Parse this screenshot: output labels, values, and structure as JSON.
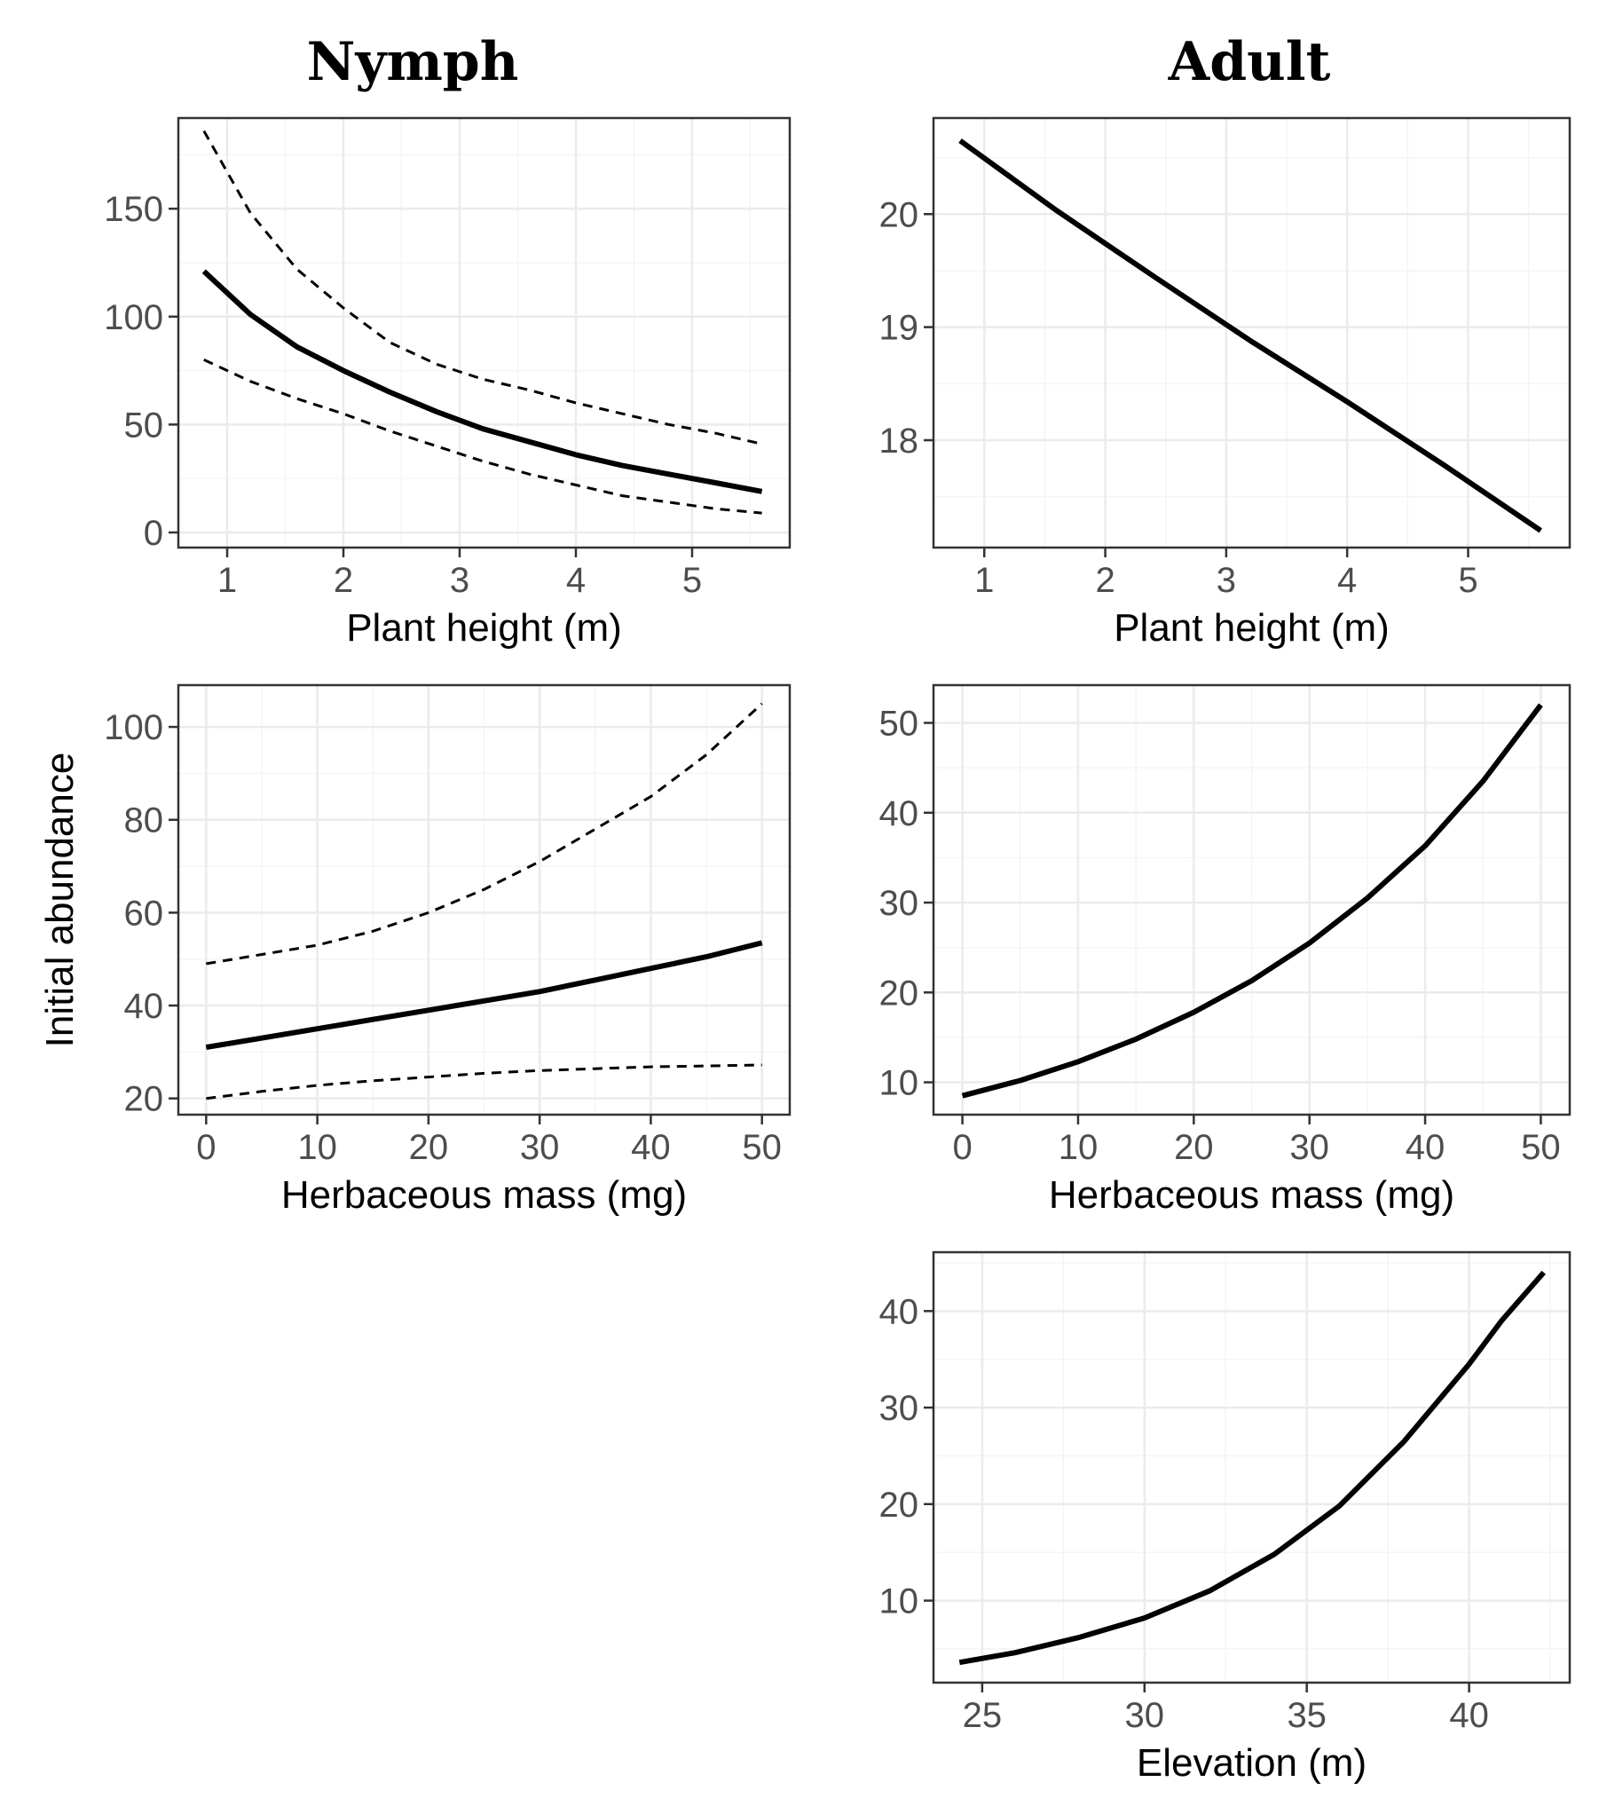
{
  "titles": {
    "nymph": "Nymph",
    "adult": "Adult"
  },
  "chart_data": [
    {
      "id": "nymph-height",
      "type": "line",
      "column": "nymph",
      "xlabel": "Plant height (m)",
      "ylabel": "",
      "xlim": [
        0.58,
        5.84
      ],
      "ylim": [
        -7,
        192
      ],
      "xticks": [
        1,
        2,
        3,
        4,
        5
      ],
      "yticks": [
        0,
        50,
        100,
        150
      ],
      "series": [
        {
          "name": "Estimate",
          "style": "solid",
          "x": [
            0.8,
            1.2,
            1.6,
            2.0,
            2.4,
            2.8,
            3.2,
            3.6,
            4.0,
            4.4,
            4.8,
            5.2,
            5.6
          ],
          "y": [
            121,
            101,
            86,
            75,
            65,
            56,
            48,
            42,
            36,
            31,
            27,
            23,
            19
          ]
        },
        {
          "name": "Upper 95% CI",
          "style": "dashed",
          "x": [
            0.8,
            1.2,
            1.6,
            2.0,
            2.4,
            2.8,
            3.2,
            3.6,
            4.0,
            4.4,
            4.8,
            5.2,
            5.6
          ],
          "y": [
            186,
            148,
            122,
            104,
            88,
            78,
            71,
            66,
            60,
            55,
            50,
            46,
            41
          ]
        },
        {
          "name": "Lower 95% CI",
          "style": "dashed",
          "x": [
            0.8,
            1.2,
            1.6,
            2.0,
            2.4,
            2.8,
            3.2,
            3.6,
            4.0,
            4.4,
            4.8,
            5.2,
            5.6
          ],
          "y": [
            80,
            70,
            62,
            55,
            47,
            40,
            33,
            27,
            22,
            17,
            14,
            11,
            9
          ]
        }
      ]
    },
    {
      "id": "adult-height",
      "type": "line",
      "column": "adult",
      "xlabel": "Plant height (m)",
      "ylabel": "",
      "xlim": [
        0.58,
        5.84
      ],
      "ylim": [
        17.05,
        20.85
      ],
      "xticks": [
        1,
        2,
        3,
        4,
        5
      ],
      "yticks": [
        18,
        19,
        20
      ],
      "series": [
        {
          "name": "Estimate",
          "style": "solid",
          "x": [
            0.8,
            1.6,
            2.4,
            3.2,
            4.0,
            4.8,
            5.6
          ],
          "y": [
            20.65,
            20.03,
            19.45,
            18.88,
            18.34,
            17.78,
            17.2
          ]
        }
      ]
    },
    {
      "id": "nymph-herb",
      "type": "line",
      "column": "nymph",
      "xlabel": "Herbaceous mass (mg)",
      "ylabel": "Initial abundance",
      "xlim": [
        -2.5,
        52.5
      ],
      "ylim": [
        16.5,
        109
      ],
      "xticks": [
        0,
        10,
        20,
        30,
        40,
        50
      ],
      "yticks": [
        20,
        40,
        60,
        80,
        100
      ],
      "series": [
        {
          "name": "Estimate",
          "style": "solid",
          "x": [
            0,
            5,
            10,
            15,
            20,
            25,
            30,
            35,
            40,
            45,
            50
          ],
          "y": [
            31,
            33,
            35,
            37,
            39,
            41,
            43,
            45.5,
            48,
            50.5,
            53.5
          ]
        },
        {
          "name": "Upper 95% CI",
          "style": "dashed",
          "x": [
            0,
            5,
            10,
            15,
            20,
            25,
            30,
            35,
            40,
            45,
            50
          ],
          "y": [
            49,
            51,
            53,
            56,
            60,
            65,
            71,
            78,
            85,
            94,
            105
          ]
        },
        {
          "name": "Lower 95% CI",
          "style": "dashed",
          "x": [
            0,
            5,
            10,
            15,
            20,
            25,
            30,
            35,
            40,
            45,
            50
          ],
          "y": [
            20,
            21.5,
            22.8,
            23.8,
            24.6,
            25.4,
            26,
            26.4,
            26.8,
            27,
            27.2
          ]
        }
      ]
    },
    {
      "id": "adult-herb",
      "type": "line",
      "column": "adult",
      "xlabel": "Herbaceous mass (mg)",
      "ylabel": "",
      "xlim": [
        -2.5,
        52.5
      ],
      "ylim": [
        6.4,
        54.2
      ],
      "xticks": [
        0,
        10,
        20,
        30,
        40,
        50
      ],
      "yticks": [
        10,
        20,
        30,
        40,
        50
      ],
      "series": [
        {
          "name": "Estimate",
          "style": "solid",
          "x": [
            0,
            5,
            10,
            15,
            20,
            25,
            30,
            35,
            40,
            45,
            50
          ],
          "y": [
            8.5,
            10.2,
            12.3,
            14.8,
            17.8,
            21.3,
            25.5,
            30.5,
            36.3,
            43.5,
            52
          ]
        }
      ]
    },
    {
      "id": "adult-elevation",
      "type": "line",
      "column": "adult",
      "xlabel": "Elevation (m)",
      "ylabel": "",
      "xlim": [
        23.5,
        43.1
      ],
      "ylim": [
        1.5,
        46.1
      ],
      "xticks": [
        25,
        30,
        35,
        40
      ],
      "yticks": [
        10,
        20,
        30,
        40
      ],
      "series": [
        {
          "name": "Estimate",
          "style": "solid",
          "x": [
            24.3,
            26,
            28,
            30,
            32,
            34,
            36,
            38,
            40,
            41,
            42.3
          ],
          "y": [
            3.6,
            4.6,
            6.2,
            8.2,
            11,
            14.8,
            19.8,
            26.5,
            34.5,
            39,
            44
          ]
        }
      ]
    }
  ]
}
